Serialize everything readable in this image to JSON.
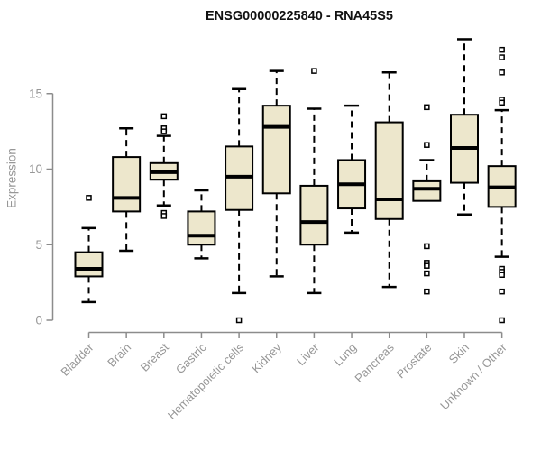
{
  "colors": {
    "box_fill": "#EDE7CC",
    "box_stroke": "#000000",
    "median": "#000000",
    "whisker": "#000000",
    "outlier_fill": "#ffffff",
    "axis": "#8C8C8C",
    "tick_text": "#979797",
    "title_text": "#111111"
  },
  "chart_data": {
    "type": "boxplot",
    "title": "ENSG00000225840 - RNA45S5",
    "ylabel": "Expression",
    "xlabel": "",
    "grid": false,
    "legend": "none",
    "yticks": [
      0,
      5,
      10,
      15
    ],
    "ylim": [
      0,
      19
    ],
    "categories": [
      "Bladder",
      "Brain",
      "Breast",
      "Gastric",
      "Hematopoietic cells",
      "Kidney",
      "Liver",
      "Lung",
      "Pancreas",
      "Prostate",
      "Skin",
      "Unknown / Other"
    ],
    "boxes": [
      {
        "label": "Bladder",
        "whisker_low": 1.2,
        "q1": 2.9,
        "median": 3.4,
        "q3": 4.5,
        "whisker_high": 6.1,
        "outliers": [
          8.1
        ]
      },
      {
        "label": "Brain",
        "whisker_low": 4.6,
        "q1": 7.2,
        "median": 8.1,
        "q3": 10.8,
        "whisker_high": 12.7,
        "outliers": []
      },
      {
        "label": "Breast",
        "whisker_low": 7.6,
        "q1": 9.3,
        "median": 9.8,
        "q3": 10.4,
        "whisker_high": 12.2,
        "outliers": [
          13.5,
          12.7,
          12.5,
          7.1,
          6.9
        ]
      },
      {
        "label": "Gastric",
        "whisker_low": 4.1,
        "q1": 5.0,
        "median": 5.6,
        "q3": 7.2,
        "whisker_high": 8.6,
        "outliers": []
      },
      {
        "label": "Hematopoietic cells",
        "whisker_low": 1.8,
        "q1": 7.3,
        "median": 9.5,
        "q3": 11.5,
        "whisker_high": 15.3,
        "outliers": [
          0
        ]
      },
      {
        "label": "Kidney",
        "whisker_low": 2.9,
        "q1": 8.4,
        "median": 12.8,
        "q3": 14.2,
        "whisker_high": 16.5,
        "outliers": []
      },
      {
        "label": "Liver",
        "whisker_low": 1.8,
        "q1": 5.0,
        "median": 6.5,
        "q3": 8.9,
        "whisker_high": 14.0,
        "outliers": [
          16.5
        ]
      },
      {
        "label": "Lung",
        "whisker_low": 5.8,
        "q1": 7.4,
        "median": 9.0,
        "q3": 10.6,
        "whisker_high": 14.2,
        "outliers": []
      },
      {
        "label": "Pancreas",
        "whisker_low": 2.2,
        "q1": 6.7,
        "median": 8.0,
        "q3": 13.1,
        "whisker_high": 16.4,
        "outliers": []
      },
      {
        "label": "Prostate",
        "whisker_low": 7.9,
        "q1": 7.9,
        "median": 8.7,
        "q3": 9.2,
        "whisker_high": 10.6,
        "outliers": [
          14.1,
          11.6,
          4.9,
          3.8,
          3.6,
          3.1,
          1.9
        ]
      },
      {
        "label": "Skin",
        "whisker_low": 7.0,
        "q1": 9.1,
        "median": 11.4,
        "q3": 13.6,
        "whisker_high": 18.6,
        "outliers": []
      },
      {
        "label": "Unknown / Other",
        "whisker_low": 4.2,
        "q1": 7.5,
        "median": 8.8,
        "q3": 10.2,
        "whisker_high": 13.9,
        "outliers": [
          17.9,
          17.4,
          16.4,
          14.6,
          14.4,
          3.4,
          3.2,
          3.0,
          1.9,
          0
        ]
      }
    ]
  }
}
